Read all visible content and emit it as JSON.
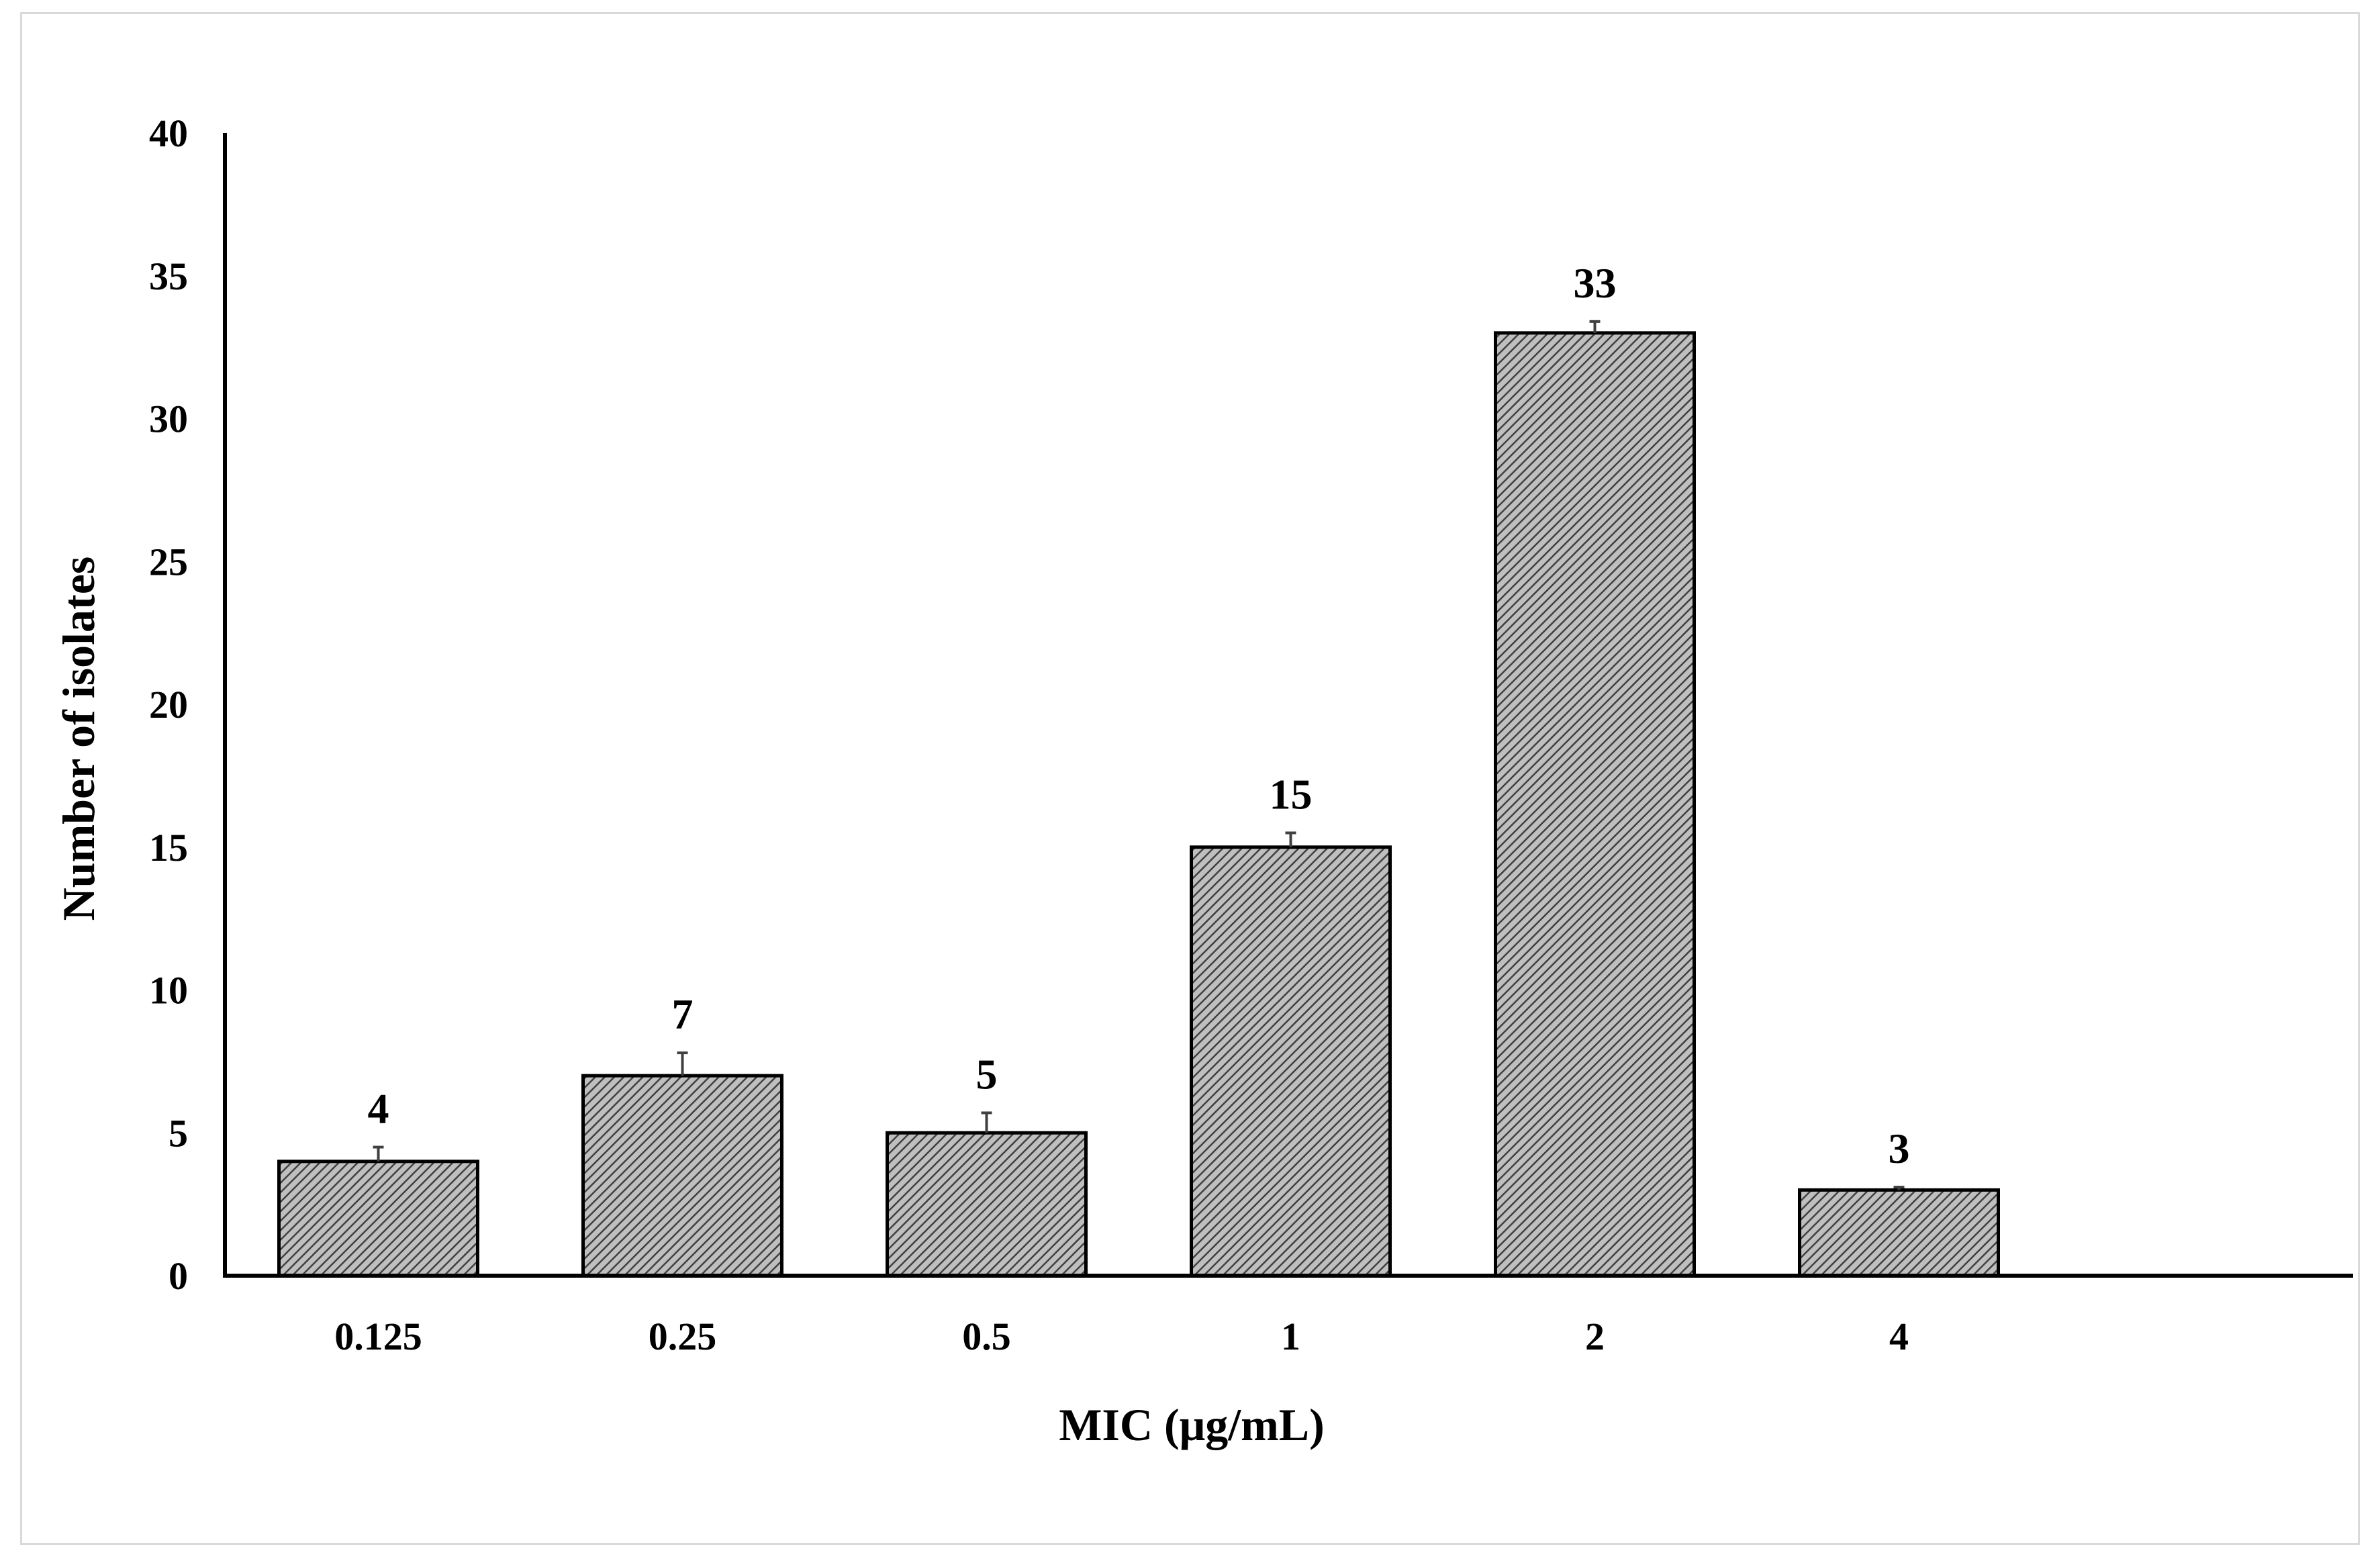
{
  "chart_data": {
    "type": "bar",
    "title": "",
    "xlabel": "MIC (μg/mL)",
    "ylabel": "Number of isolates",
    "categories": [
      "0.125",
      "0.25",
      "0.5",
      "1",
      "2",
      "4"
    ],
    "values": [
      4,
      7,
      5,
      15,
      33,
      3
    ],
    "error_upper": [
      0.5,
      0.8,
      0.7,
      0.5,
      0.4,
      0.1
    ],
    "data_labels": [
      "4",
      "7",
      "5",
      "15",
      "33",
      "3"
    ],
    "ylim": [
      0,
      40
    ],
    "yticks": [
      "0",
      "5",
      "10",
      "15",
      "20",
      "25",
      "30",
      "35",
      "40"
    ],
    "grid": false,
    "legend": "none",
    "colors": {
      "bar_fill": "#bfbfbf",
      "hatch_line": "#404040",
      "bar_stroke": "#000000",
      "axis": "#000000",
      "error_bar": "#404040"
    }
  }
}
